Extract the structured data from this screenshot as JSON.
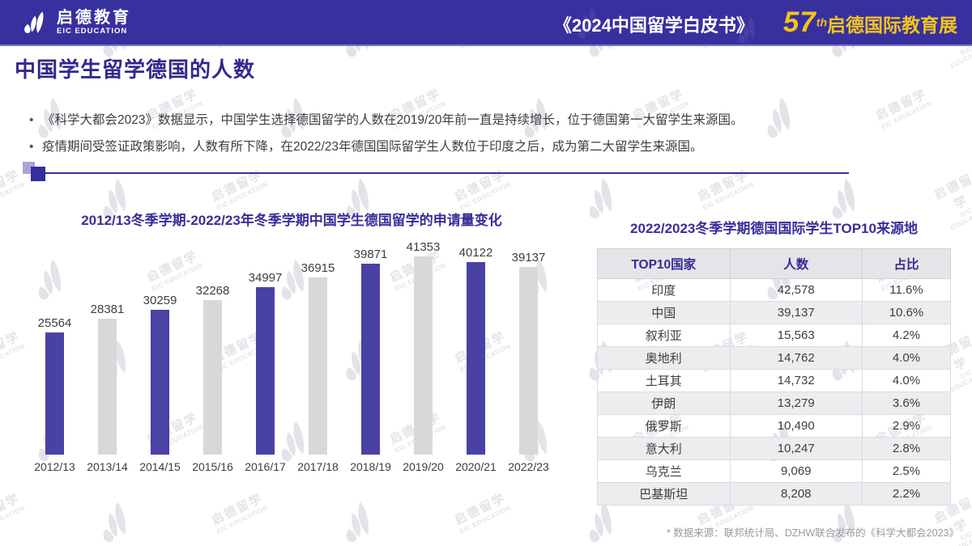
{
  "header": {
    "logo_cn": "启德教育",
    "logo_en": "EIC EDUCATION",
    "book_title": "《2024中国留学白皮书》",
    "expo_number": "57",
    "expo_suffix": "th",
    "expo_label": "启德国际教育展"
  },
  "page": {
    "title": "中国学生留学德国的人数",
    "bullets": [
      "《科学大都会2023》数据显示，中国学生选择德国留学的人数在2019/20年前一直是持续增长，位于德国第一大留学生来源国。",
      "疫情期间受签证政策影响，人数有所下降，在2022/23年德国国际留学生人数位于印度之后，成为第二大留学生来源国。"
    ],
    "footnote": "* 数据来源：联邦统计局、DZHW联合发布的《科学大都会2023》"
  },
  "chart_data": {
    "type": "bar",
    "title": "2012/13冬季学期-2022/23年冬季学期中国学生德国留学的申请量变化",
    "categories": [
      "2012/13",
      "2013/14",
      "2014/15",
      "2015/16",
      "2016/17",
      "2017/18",
      "2018/19",
      "2019/20",
      "2020/21",
      "2022/23"
    ],
    "values": [
      25564,
      28381,
      30259,
      32268,
      34997,
      36915,
      39871,
      41353,
      40122,
      39137
    ],
    "xlabel": "",
    "ylabel": "",
    "ylim": [
      0,
      45000
    ],
    "grid": false,
    "legend": "none",
    "value_labels": true,
    "bar_color_pattern": "alternating purple/gray starting purple"
  },
  "table": {
    "title": "2022/2023冬季学期德国国际学生TOP10来源地",
    "columns": [
      "TOP10国家",
      "人数",
      "占比"
    ],
    "rows": [
      [
        "印度",
        "42,578",
        "11.6%"
      ],
      [
        "中国",
        "39,137",
        "10.6%"
      ],
      [
        "叙利亚",
        "15,563",
        "4.2%"
      ],
      [
        "奥地利",
        "14,762",
        "4.0%"
      ],
      [
        "土耳其",
        "14,732",
        "4.0%"
      ],
      [
        "伊朗",
        "13,279",
        "3.6%"
      ],
      [
        "俄罗斯",
        "10,490",
        "2.9%"
      ],
      [
        "意大利",
        "10,247",
        "2.8%"
      ],
      [
        "乌克兰",
        "9,069",
        "2.5%"
      ],
      [
        "巴基斯坦",
        "8,208",
        "2.2%"
      ]
    ]
  },
  "watermark": {
    "cn": "启德留学",
    "en": "EIC EDUCATION"
  },
  "colors": {
    "header_bg": "#38309f",
    "brand_purple": "#352b92",
    "gold": "#f2c41d",
    "bar_purple": "#4a41a5",
    "bar_gray": "#d8d8d8",
    "watermark_gray": "#e3e3ea"
  }
}
